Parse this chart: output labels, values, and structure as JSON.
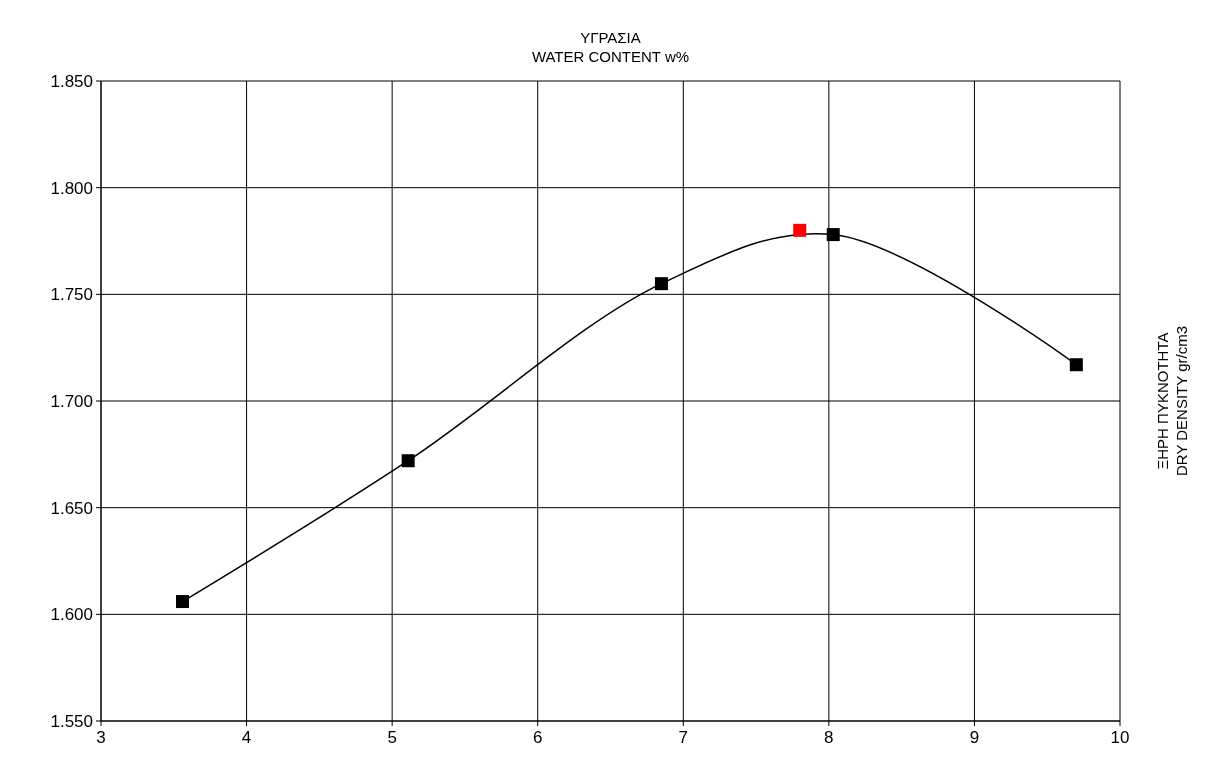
{
  "chart_data": {
    "type": "line",
    "xlabel": "ΥΓΡΑΣΙΑ\nWATER CONTENT w%",
    "ylabel": "ΞΗΡΗ ΠΥΚΝΟΤΗΤΑ\nDRY DENSITY  gr/cm3",
    "xlim": [
      3,
      10
    ],
    "xticks": [
      3,
      4,
      5,
      6,
      7,
      8,
      9,
      10
    ],
    "ylim": [
      1.55,
      1.85
    ],
    "yticks": [
      {
        "value": 1.55,
        "label": "1.550"
      },
      {
        "value": 1.6,
        "label": "1.600"
      },
      {
        "value": 1.65,
        "label": "1.650"
      },
      {
        "value": 1.7,
        "label": "1.700"
      },
      {
        "value": 1.75,
        "label": "1.750"
      },
      {
        "value": 1.8,
        "label": "1.800"
      },
      {
        "value": 1.85,
        "label": "1.850"
      }
    ],
    "grid": true,
    "series": [
      {
        "color": "#000000",
        "marker": "square",
        "x": [
          3.56,
          5.11,
          6.85,
          8.03,
          9.7
        ],
        "values": [
          1.606,
          1.672,
          1.755,
          1.778,
          1.717
        ]
      },
      {
        "type": "scatter",
        "color": "#ff0000",
        "marker": "square",
        "x": [
          7.8
        ],
        "values": [
          1.78
        ]
      }
    ]
  }
}
